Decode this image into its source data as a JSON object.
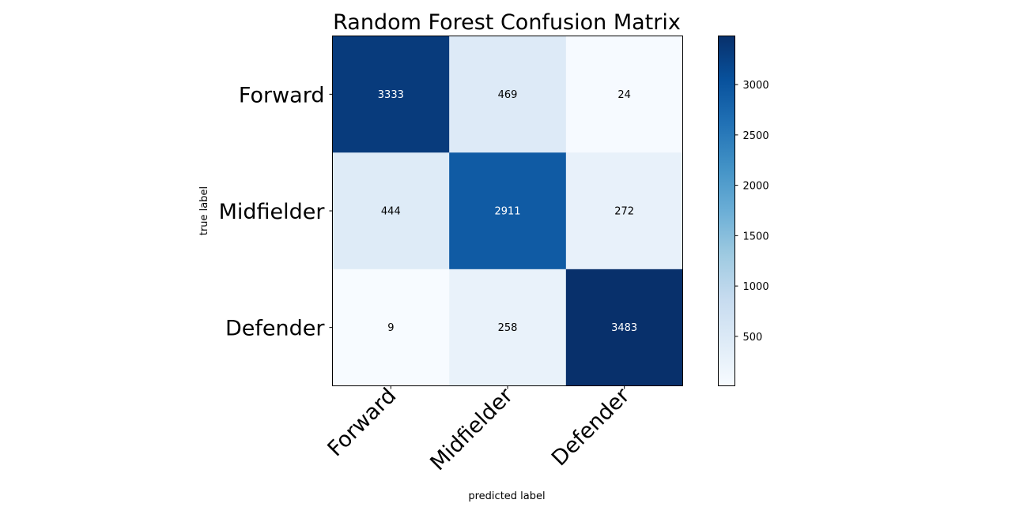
{
  "chart_data": {
    "type": "heatmap",
    "title": "Random Forest Confusion Matrix",
    "xlabel": "predicted label",
    "ylabel": "true label",
    "row_labels": [
      "Forward",
      "Midfielder",
      "Defender"
    ],
    "col_labels": [
      "Forward",
      "Midfielder",
      "Defender"
    ],
    "values": [
      [
        3333,
        469,
        24
      ],
      [
        444,
        2911,
        272
      ],
      [
        9,
        258,
        3483
      ]
    ],
    "colormap": "Blues",
    "colorbar": {
      "range": [
        9,
        3483
      ],
      "ticks": [
        500,
        1000,
        1500,
        2000,
        2500,
        3000
      ]
    },
    "text_colors": {
      "dark_cell": "#ffffff",
      "light_cell": "#000000"
    }
  }
}
